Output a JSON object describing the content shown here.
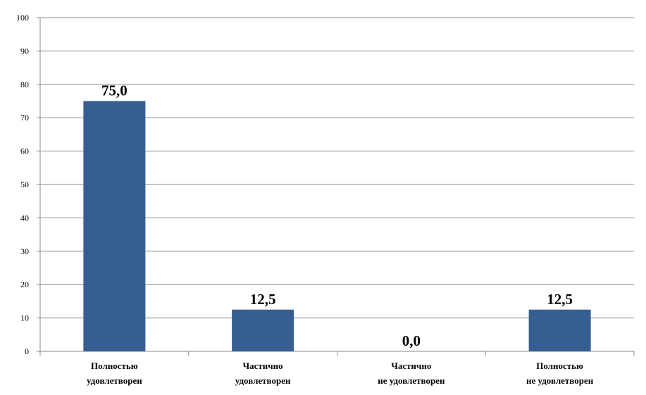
{
  "chart_data": {
    "type": "bar",
    "title": "",
    "xlabel": "",
    "ylabel": "",
    "categories": [
      [
        "Полностью",
        "удовлетворен"
      ],
      [
        "Частично",
        "удовлетворен"
      ],
      [
        "Частично",
        "не удовлетворен"
      ],
      [
        "Полностью",
        "не удовлетворен"
      ]
    ],
    "values": [
      75.0,
      12.5,
      0.0,
      12.5
    ],
    "data_labels": [
      "75,0",
      "12,5",
      "0,0",
      "12,5"
    ],
    "ylim": [
      0,
      100
    ],
    "yticks": [
      0,
      10,
      20,
      30,
      40,
      50,
      60,
      70,
      80,
      90,
      100
    ],
    "grid": true,
    "legend": "none",
    "colors": {
      "bar": "#365F91",
      "grid": "#888888",
      "axis": "#888888"
    }
  }
}
